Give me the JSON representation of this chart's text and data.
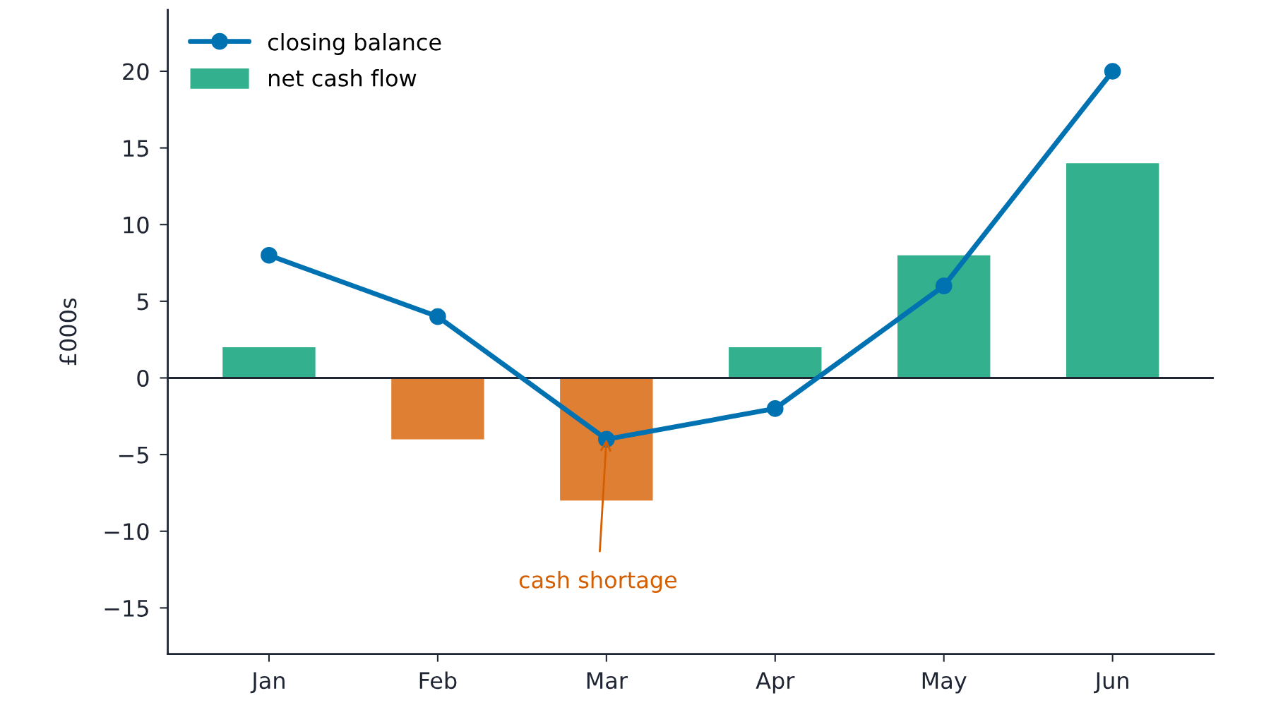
{
  "chart_data": {
    "type": "bar",
    "ylabel": "£000s",
    "categories": [
      "Jan",
      "Feb",
      "Mar",
      "Apr",
      "May",
      "Jun"
    ],
    "series": [
      {
        "name": "closing balance",
        "type": "line",
        "color": "#0072b2",
        "values": [
          8,
          4,
          -4,
          -2,
          6,
          20
        ],
        "marker": "circle",
        "line_style": "solid"
      },
      {
        "name": "net cash flow",
        "color": "#33b08d",
        "colors": [
          "#33b08d",
          "#de7f33",
          "#de7f33",
          "#33b08d",
          "#33b08d",
          "#33b08d"
        ],
        "values": [
          2,
          -4,
          -8,
          2,
          8,
          14
        ]
      }
    ],
    "ylim": [
      -18,
      24
    ],
    "yticks": [
      -15,
      -10,
      -5,
      0,
      5,
      10,
      15,
      20
    ],
    "ref_lines": [
      {
        "axis": "y",
        "value": 0,
        "color": "#1f2533"
      }
    ],
    "annotations": [
      {
        "text": "cash shortage",
        "x": "Mar",
        "y": -4
      }
    ],
    "grid": false,
    "legend": "top left"
  }
}
